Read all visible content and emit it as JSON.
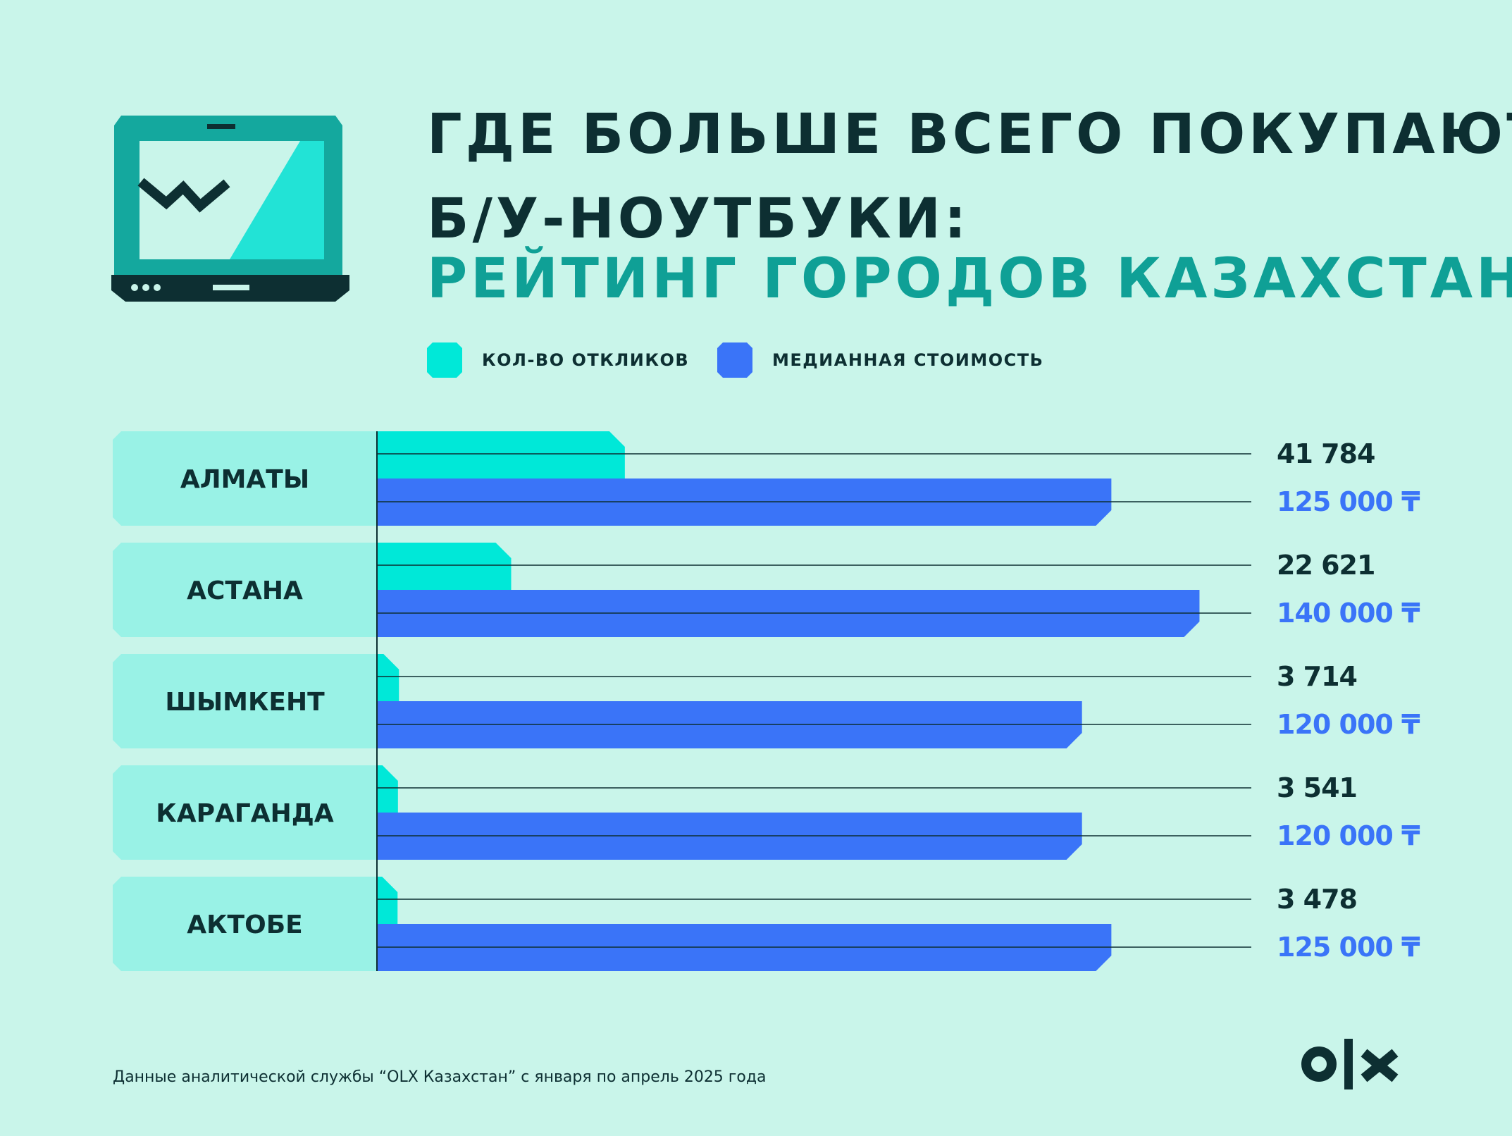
{
  "title": {
    "line1": "ГДЕ БОЛЬШЕ ВСЕГО ПОКУПАЮТ",
    "line2": "Б/У-НОУТБУКИ:",
    "line3": "РЕЙТИНГ ГОРОДОВ КАЗАХСТАНА"
  },
  "legend": [
    {
      "label": "КОЛ-ВО ОТКЛИКОВ",
      "color": "#00e8d8"
    },
    {
      "label": "МЕДИАННАЯ СТОИМОСТЬ",
      "color": "#3a74f8"
    }
  ],
  "chart_data": {
    "type": "bar",
    "orientation": "horizontal",
    "categories": [
      "АЛМАТЫ",
      "АСТАНА",
      "ШЫМКЕНТ",
      "КАРАГАНДА",
      "АКТОБЕ"
    ],
    "series": [
      {
        "name": "КОЛ-ВО ОТКЛИКОВ",
        "color": "#00e8d8",
        "values": [
          41784,
          22621,
          3714,
          3541,
          3478
        ],
        "labels": [
          "41 784",
          "22 621",
          "3 714",
          "3 541",
          "3 478"
        ]
      },
      {
        "name": "МЕДИАННАЯ СТОИМОСТЬ",
        "color": "#3a74f8",
        "values": [
          125000,
          140000,
          120000,
          120000,
          125000
        ],
        "labels": [
          "125 000 ₸",
          "140 000 ₸",
          "120 000 ₸",
          "120 000 ₸",
          "125 000 ₸"
        ]
      }
    ],
    "grid": true
  },
  "footnote": "Данные аналитической службы “OLX Казахстан” с января по апрель 2025 года",
  "colors": {
    "background": "#c9f5ea",
    "dark": "#0d2f32",
    "title_accent": "#0fa096",
    "city_box": "#99f2e6"
  }
}
